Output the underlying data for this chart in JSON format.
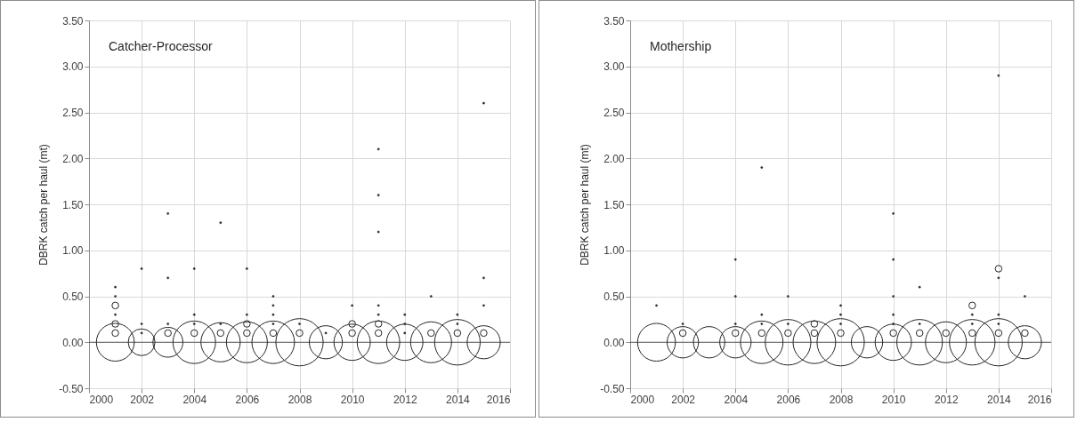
{
  "chart_data": [
    {
      "type": "bubble",
      "annotations": [
        "Catcher-Processor"
      ],
      "ylabel": "DBRK catch per haul (mt)",
      "xlim": [
        2000,
        2016
      ],
      "xticks": [
        2000,
        2002,
        2004,
        2006,
        2008,
        2010,
        2012,
        2014,
        2016
      ],
      "ylim": [
        -0.5,
        3.5
      ],
      "yticks": [
        {
          "value": -0.5,
          "label": "-0.50"
        },
        {
          "value": 0,
          "label": "0.00"
        },
        {
          "value": 0.5,
          "label": "0.50"
        },
        {
          "value": 1,
          "label": "1.00"
        },
        {
          "value": 1.5,
          "label": "1.50"
        },
        {
          "value": 2,
          "label": "2.00"
        },
        {
          "value": 2.5,
          "label": "2.50"
        },
        {
          "value": 3,
          "label": "3.00"
        },
        {
          "value": 3.5,
          "label": "3.50"
        }
      ],
      "grid": true,
      "marker": "circle",
      "ref_lines": [
        {
          "axis": "y",
          "value": 0,
          "color": "#595959"
        }
      ],
      "series": [
        {
          "color": "#262626",
          "x": [
            2001,
            2001,
            2001,
            2001,
            2002,
            2003,
            2003,
            2004,
            2004,
            2005,
            2005,
            2006,
            2006,
            2006,
            2007,
            2007,
            2008,
            2008,
            2009,
            2010,
            2010,
            2010,
            2011,
            2011,
            2011,
            2012,
            2013,
            2013,
            2014,
            2014,
            2015,
            2015
          ],
          "values": [
            0,
            0.1,
            0.2,
            0.4,
            0,
            0,
            0.1,
            0,
            0.1,
            0,
            0.1,
            0,
            0.1,
            0.2,
            0,
            0.1,
            0,
            0.1,
            0,
            0,
            0.1,
            0.2,
            0,
            0.1,
            0.2,
            0,
            0,
            0.1,
            0,
            0.1,
            0,
            0.1
          ],
          "sizes": [
            0.64,
            0.02,
            0.02,
            0.02,
            0.32,
            0.4,
            0.02,
            0.81,
            0.02,
            0.69,
            0.02,
            0.75,
            0.02,
            0.02,
            0.81,
            0.02,
            1,
            0.02,
            0.49,
            0.59,
            0.02,
            0.02,
            0.81,
            0.02,
            0.02,
            0.59,
            0.75,
            0.02,
            0.93,
            0.02,
            0.49,
            0.02
          ]
        },
        {
          "type": "scatter",
          "color": "#262626",
          "x": [
            2001,
            2001,
            2001,
            2002,
            2002,
            2002,
            2003,
            2003,
            2003,
            2004,
            2004,
            2004,
            2005,
            2005,
            2006,
            2006,
            2007,
            2007,
            2007,
            2007,
            2008,
            2009,
            2010,
            2011,
            2011,
            2011,
            2011,
            2011,
            2012,
            2012,
            2012,
            2013,
            2014,
            2014,
            2015,
            2015,
            2015
          ],
          "values": [
            0.3,
            0.5,
            0.6,
            0.1,
            0.2,
            0.8,
            0.2,
            0.7,
            1.4,
            0.2,
            0.3,
            0.8,
            0.2,
            1.3,
            0.3,
            0.8,
            0.2,
            0.3,
            0.4,
            0.5,
            0.2,
            0.1,
            0.4,
            0.3,
            0.4,
            1.2,
            1.6,
            2.1,
            0.1,
            0.2,
            0.3,
            0.5,
            0.2,
            0.3,
            0.4,
            0.7,
            2.6
          ]
        }
      ]
    },
    {
      "type": "bubble",
      "annotations": [
        "Mothership"
      ],
      "ylabel": "DBRK catch per haul (mt)",
      "xlim": [
        2000,
        2016
      ],
      "xticks": [
        2000,
        2002,
        2004,
        2006,
        2008,
        2010,
        2012,
        2014,
        2016
      ],
      "ylim": [
        -0.5,
        3.5
      ],
      "yticks": [
        {
          "value": -0.5,
          "label": "-0.50"
        },
        {
          "value": 0,
          "label": "0.00"
        },
        {
          "value": 0.5,
          "label": "0.50"
        },
        {
          "value": 1,
          "label": "1.00"
        },
        {
          "value": 1.5,
          "label": "1.50"
        },
        {
          "value": 2,
          "label": "2.00"
        },
        {
          "value": 2.5,
          "label": "2.50"
        },
        {
          "value": 3,
          "label": "3.00"
        },
        {
          "value": 3.5,
          "label": "3.50"
        }
      ],
      "grid": true,
      "marker": "circle",
      "ref_lines": [
        {
          "axis": "y",
          "value": 0,
          "color": "#595959"
        }
      ],
      "series": [
        {
          "color": "#262626",
          "x": [
            2001,
            2002,
            2002,
            2003,
            2004,
            2004,
            2005,
            2005,
            2006,
            2006,
            2007,
            2007,
            2007,
            2008,
            2008,
            2009,
            2010,
            2010,
            2011,
            2011,
            2012,
            2012,
            2013,
            2013,
            2013,
            2014,
            2014,
            2014,
            2015,
            2015
          ],
          "values": [
            0,
            0,
            0.1,
            0,
            0,
            0.1,
            0,
            0.1,
            0,
            0.1,
            0,
            0.1,
            0.2,
            0,
            0.1,
            0,
            0,
            0.1,
            0,
            0.1,
            0,
            0.1,
            0,
            0.1,
            0.4,
            0,
            0.1,
            0.8,
            0,
            0.1
          ],
          "sizes": [
            0.64,
            0.44,
            0.02,
            0.44,
            0.44,
            0.02,
            0.81,
            0.02,
            0.93,
            0.02,
            0.81,
            0.02,
            0.02,
            1,
            0.02,
            0.44,
            0.59,
            0.02,
            0.93,
            0.02,
            0.75,
            0.02,
            0.93,
            0.02,
            0.02,
            1,
            0.02,
            0.02,
            0.49,
            0.02
          ]
        },
        {
          "type": "scatter",
          "color": "#262626",
          "x": [
            2001,
            2002,
            2004,
            2004,
            2004,
            2005,
            2005,
            2005,
            2006,
            2006,
            2008,
            2008,
            2008,
            2010,
            2010,
            2010,
            2010,
            2010,
            2011,
            2011,
            2013,
            2013,
            2014,
            2014,
            2014,
            2014,
            2015
          ],
          "values": [
            0.4,
            0.2,
            0.2,
            0.5,
            0.9,
            0.2,
            0.3,
            1.9,
            0.2,
            0.5,
            0.2,
            0.3,
            0.4,
            0.2,
            0.3,
            0.5,
            0.9,
            1.4,
            0.2,
            0.6,
            0.2,
            0.3,
            0.2,
            0.3,
            0.7,
            2.9,
            0.5
          ]
        }
      ]
    }
  ]
}
